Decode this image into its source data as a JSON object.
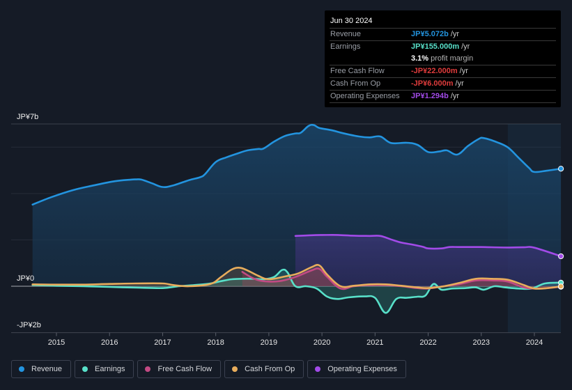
{
  "tooltip": {
    "date": "Jun 30 2024",
    "rows": [
      {
        "label": "Revenue",
        "value": "JP¥5.072b",
        "unit": "/yr",
        "color": "#2394df"
      },
      {
        "label": "Earnings",
        "value": "JP¥155.000m",
        "unit": "/yr",
        "color": "#58e0c9"
      },
      {
        "label": "",
        "value": "3.1%",
        "unit": "profit margin",
        "color": "#ffffff"
      },
      {
        "label": "Free Cash Flow",
        "value": "-JP¥22.000m",
        "unit": "/yr",
        "color": "#e03c3c"
      },
      {
        "label": "Cash From Op",
        "value": "-JP¥6.000m",
        "unit": "/yr",
        "color": "#e03c3c"
      },
      {
        "label": "Operating Expenses",
        "value": "JP¥1.294b",
        "unit": "/yr",
        "color": "#a24be8"
      }
    ]
  },
  "legend": [
    {
      "label": "Revenue",
      "color": "#2394df"
    },
    {
      "label": "Earnings",
      "color": "#58e0c9"
    },
    {
      "label": "Free Cash Flow",
      "color": "#c24a83"
    },
    {
      "label": "Cash From Op",
      "color": "#e8ad5c"
    },
    {
      "label": "Operating Expenses",
      "color": "#a24be8"
    }
  ],
  "chart_data": {
    "type": "area",
    "title": "",
    "xlabel": "",
    "ylabel": "",
    "y_axis_labels": [
      "JP¥7b",
      "JP¥0",
      "-JP¥2b"
    ],
    "y_ticks": [
      7,
      0,
      -2
    ],
    "ylim": [
      -2,
      7
    ],
    "xlim": [
      2014.55,
      2024.5
    ],
    "x_ticks": [
      "2015",
      "2016",
      "2017",
      "2018",
      "2019",
      "2020",
      "2021",
      "2022",
      "2023",
      "2024"
    ],
    "forecast_region_start": 2023.5,
    "grid": true,
    "legend_position": "bottom-left",
    "series": [
      {
        "name": "Revenue",
        "color": "#2394df",
        "points": [
          [
            2014.55,
            3.52
          ],
          [
            2014.9,
            3.84
          ],
          [
            2015.3,
            4.14
          ],
          [
            2015.7,
            4.35
          ],
          [
            2016.1,
            4.53
          ],
          [
            2016.4,
            4.6
          ],
          [
            2016.5,
            4.61
          ],
          [
            2016.6,
            4.6
          ],
          [
            2016.8,
            4.44
          ],
          [
            2017.0,
            4.28
          ],
          [
            2017.2,
            4.35
          ],
          [
            2017.5,
            4.58
          ],
          [
            2017.7,
            4.7
          ],
          [
            2017.8,
            4.84
          ],
          [
            2018.0,
            5.36
          ],
          [
            2018.2,
            5.56
          ],
          [
            2018.4,
            5.72
          ],
          [
            2018.6,
            5.86
          ],
          [
            2018.8,
            5.92
          ],
          [
            2018.9,
            5.94
          ],
          [
            2019.1,
            6.24
          ],
          [
            2019.3,
            6.48
          ],
          [
            2019.5,
            6.59
          ],
          [
            2019.6,
            6.62
          ],
          [
            2019.75,
            6.92
          ],
          [
            2019.85,
            6.95
          ],
          [
            2019.95,
            6.83
          ],
          [
            2020.2,
            6.72
          ],
          [
            2020.4,
            6.6
          ],
          [
            2020.7,
            6.46
          ],
          [
            2020.9,
            6.42
          ],
          [
            2021.1,
            6.46
          ],
          [
            2021.3,
            6.18
          ],
          [
            2021.6,
            6.19
          ],
          [
            2021.8,
            6.1
          ],
          [
            2022.0,
            5.79
          ],
          [
            2022.2,
            5.81
          ],
          [
            2022.35,
            5.86
          ],
          [
            2022.55,
            5.68
          ],
          [
            2022.75,
            6.05
          ],
          [
            2022.95,
            6.35
          ],
          [
            2023.05,
            6.39
          ],
          [
            2023.3,
            6.21
          ],
          [
            2023.5,
            5.99
          ],
          [
            2023.7,
            5.55
          ],
          [
            2023.9,
            5.1
          ],
          [
            2024.0,
            4.93
          ],
          [
            2024.25,
            4.99
          ],
          [
            2024.5,
            5.07
          ]
        ]
      },
      {
        "name": "Earnings",
        "color": "#58e0c9",
        "points": [
          [
            2014.55,
            0.05
          ],
          [
            2015.0,
            0.02
          ],
          [
            2015.5,
            0.0
          ],
          [
            2016.0,
            -0.03
          ],
          [
            2016.5,
            -0.06
          ],
          [
            2017.0,
            -0.08
          ],
          [
            2017.3,
            0.0
          ],
          [
            2017.6,
            0.05
          ],
          [
            2017.9,
            0.12
          ],
          [
            2018.1,
            0.22
          ],
          [
            2018.3,
            0.3
          ],
          [
            2018.5,
            0.32
          ],
          [
            2018.7,
            0.32
          ],
          [
            2018.9,
            0.3
          ],
          [
            2019.1,
            0.4
          ],
          [
            2019.25,
            0.7
          ],
          [
            2019.35,
            0.6
          ],
          [
            2019.5,
            0.0
          ],
          [
            2019.7,
            0.0
          ],
          [
            2019.9,
            -0.1
          ],
          [
            2020.1,
            -0.45
          ],
          [
            2020.3,
            -0.55
          ],
          [
            2020.5,
            -0.48
          ],
          [
            2020.8,
            -0.44
          ],
          [
            2021.0,
            -0.5
          ],
          [
            2021.2,
            -1.15
          ],
          [
            2021.4,
            -0.55
          ],
          [
            2021.6,
            -0.5
          ],
          [
            2021.8,
            -0.45
          ],
          [
            2021.95,
            -0.4
          ],
          [
            2022.1,
            0.1
          ],
          [
            2022.25,
            -0.15
          ],
          [
            2022.45,
            -0.1
          ],
          [
            2022.7,
            -0.08
          ],
          [
            2022.9,
            -0.05
          ],
          [
            2023.05,
            -0.15
          ],
          [
            2023.25,
            0.0
          ],
          [
            2023.45,
            -0.05
          ],
          [
            2023.7,
            -0.1
          ],
          [
            2023.95,
            -0.1
          ],
          [
            2024.2,
            0.12
          ],
          [
            2024.5,
            0.155
          ]
        ]
      },
      {
        "name": "Free Cash Flow",
        "color": "#c24a83",
        "points": [
          [
            2018.5,
            0.62
          ],
          [
            2018.7,
            0.35
          ],
          [
            2018.9,
            0.22
          ],
          [
            2019.2,
            0.22
          ],
          [
            2019.5,
            0.4
          ],
          [
            2019.8,
            0.68
          ],
          [
            2019.95,
            0.75
          ],
          [
            2020.1,
            0.4
          ],
          [
            2020.35,
            -0.1
          ],
          [
            2020.6,
            0.0
          ],
          [
            2020.9,
            0.05
          ],
          [
            2021.2,
            0.05
          ],
          [
            2021.5,
            0.0
          ],
          [
            2021.8,
            -0.08
          ],
          [
            2022.0,
            -0.1
          ],
          [
            2022.3,
            0.0
          ],
          [
            2022.6,
            0.1
          ],
          [
            2022.9,
            0.25
          ],
          [
            2023.2,
            0.25
          ],
          [
            2023.5,
            0.2
          ],
          [
            2023.8,
            -0.05
          ],
          [
            2024.1,
            -0.1
          ],
          [
            2024.5,
            -0.022
          ]
        ]
      },
      {
        "name": "Cash From Op",
        "color": "#e8ad5c",
        "points": [
          [
            2014.55,
            0.08
          ],
          [
            2015.0,
            0.07
          ],
          [
            2015.5,
            0.07
          ],
          [
            2016.0,
            0.1
          ],
          [
            2016.5,
            0.12
          ],
          [
            2017.0,
            0.12
          ],
          [
            2017.2,
            0.05
          ],
          [
            2017.5,
            0.0
          ],
          [
            2017.9,
            0.1
          ],
          [
            2018.1,
            0.4
          ],
          [
            2018.3,
            0.72
          ],
          [
            2018.45,
            0.8
          ],
          [
            2018.6,
            0.68
          ],
          [
            2018.8,
            0.45
          ],
          [
            2019.0,
            0.3
          ],
          [
            2019.3,
            0.42
          ],
          [
            2019.55,
            0.55
          ],
          [
            2019.8,
            0.82
          ],
          [
            2019.95,
            0.9
          ],
          [
            2020.1,
            0.5
          ],
          [
            2020.35,
            0.0
          ],
          [
            2020.6,
            0.02
          ],
          [
            2020.9,
            0.08
          ],
          [
            2021.2,
            0.08
          ],
          [
            2021.5,
            0.02
          ],
          [
            2021.8,
            -0.05
          ],
          [
            2022.0,
            -0.08
          ],
          [
            2022.3,
            0.0
          ],
          [
            2022.6,
            0.15
          ],
          [
            2022.9,
            0.32
          ],
          [
            2023.2,
            0.32
          ],
          [
            2023.5,
            0.28
          ],
          [
            2023.8,
            0.05
          ],
          [
            2024.0,
            -0.1
          ],
          [
            2024.25,
            -0.08
          ],
          [
            2024.5,
            -0.006
          ]
        ]
      },
      {
        "name": "Operating Expenses",
        "color": "#a24be8",
        "points": [
          [
            2019.5,
            2.17
          ],
          [
            2019.8,
            2.2
          ],
          [
            2020.0,
            2.21
          ],
          [
            2020.3,
            2.21
          ],
          [
            2020.6,
            2.18
          ],
          [
            2020.9,
            2.17
          ],
          [
            2021.1,
            2.17
          ],
          [
            2021.3,
            2.02
          ],
          [
            2021.5,
            1.88
          ],
          [
            2021.7,
            1.8
          ],
          [
            2021.9,
            1.7
          ],
          [
            2022.0,
            1.63
          ],
          [
            2022.25,
            1.63
          ],
          [
            2022.4,
            1.69
          ],
          [
            2022.6,
            1.69
          ],
          [
            2023.0,
            1.69
          ],
          [
            2023.5,
            1.67
          ],
          [
            2023.8,
            1.68
          ],
          [
            2024.0,
            1.66
          ],
          [
            2024.5,
            1.294
          ]
        ]
      }
    ]
  }
}
